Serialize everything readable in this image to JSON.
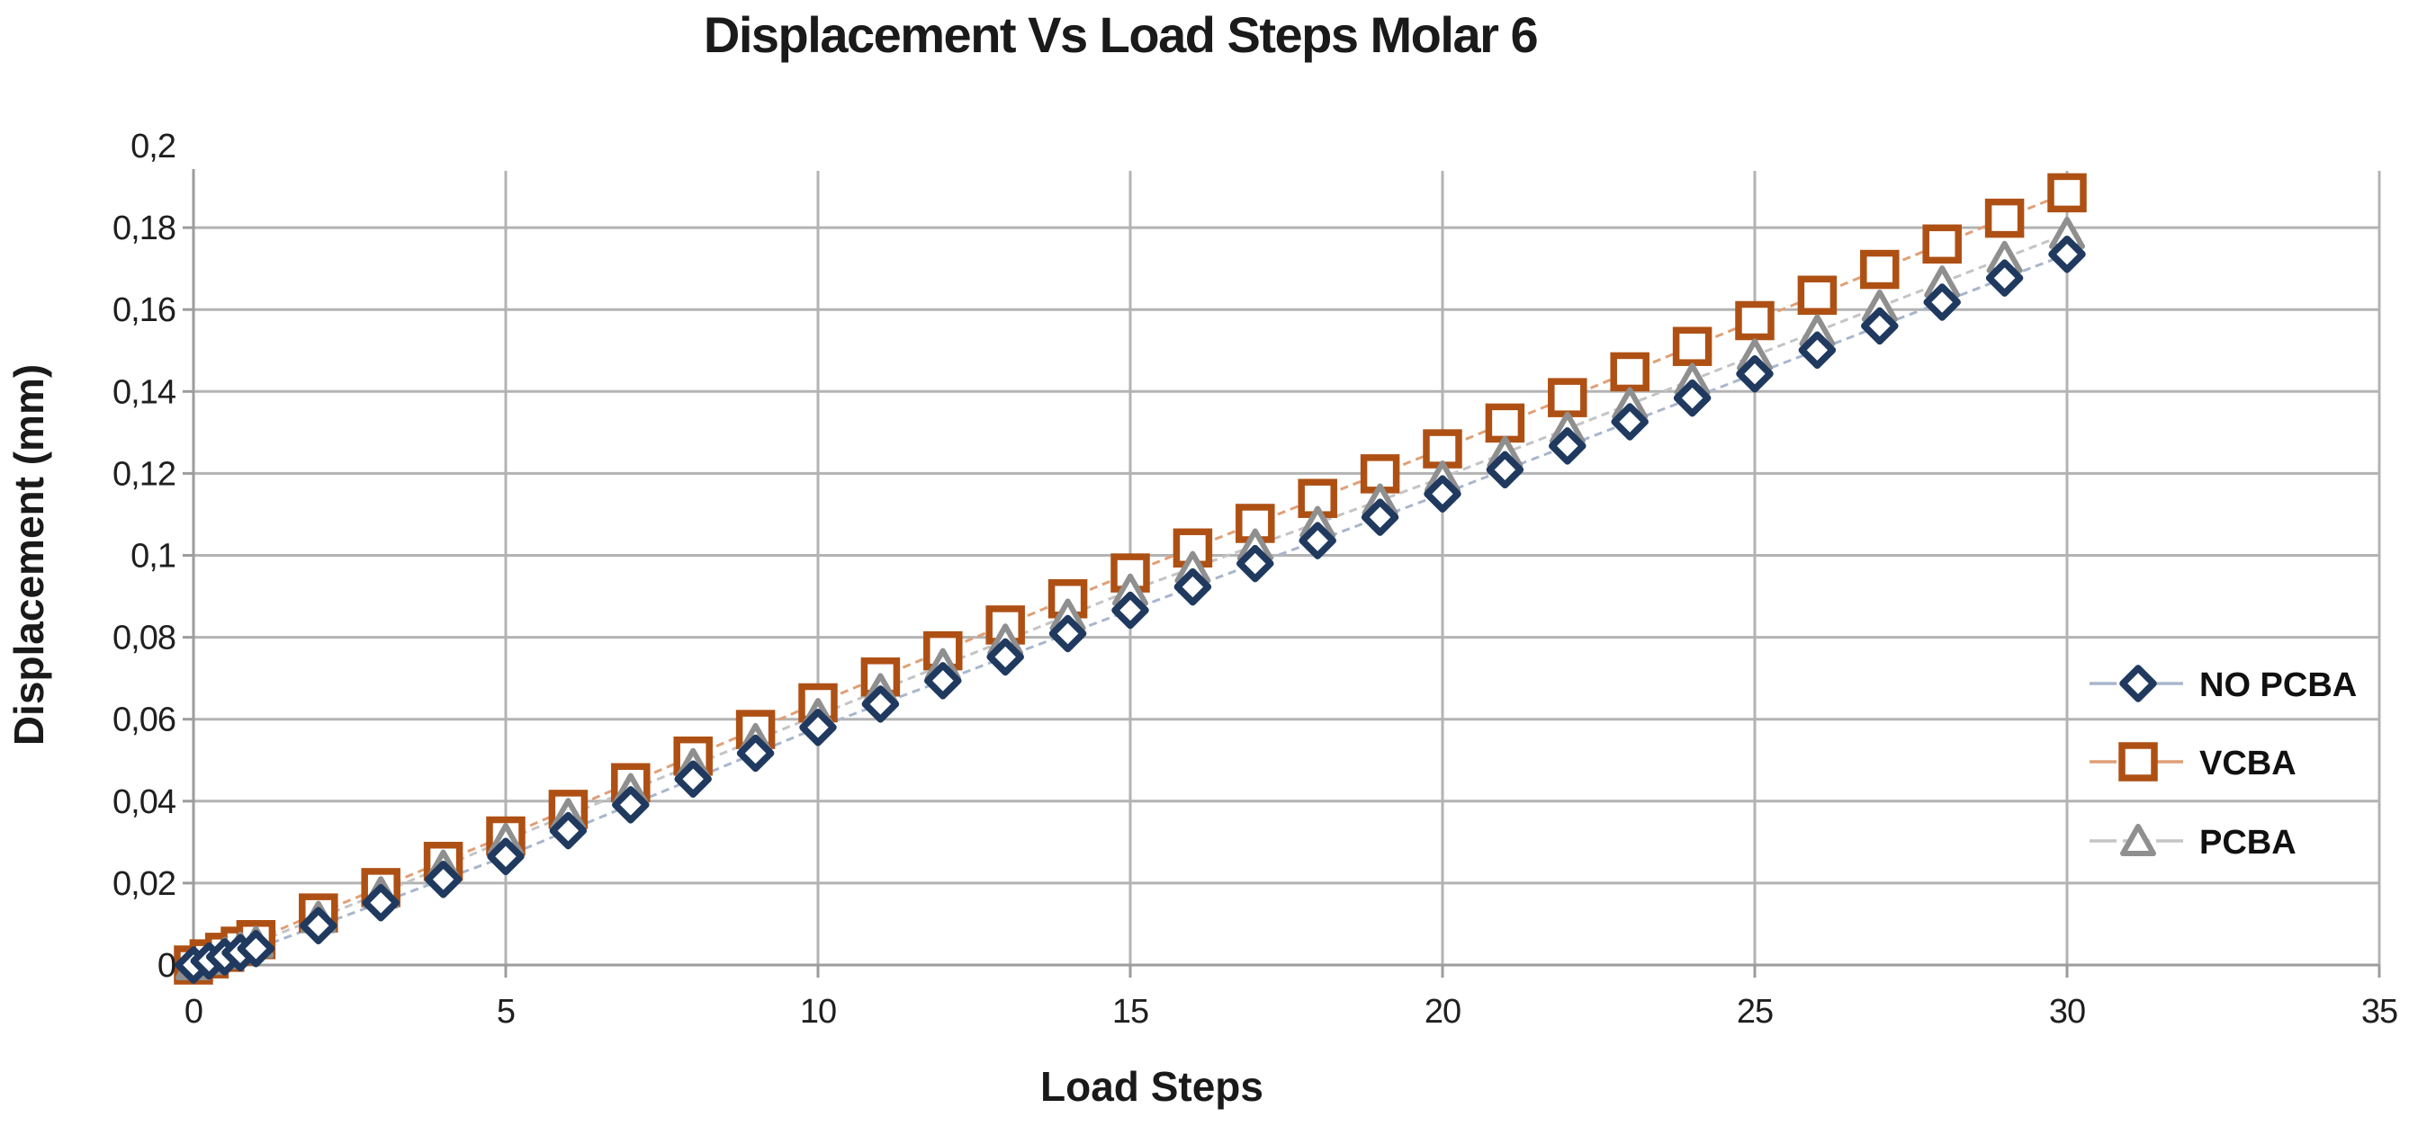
{
  "chart_data": {
    "type": "line",
    "title": "Displacement Vs Load Steps Molar 6",
    "xlabel": "Load Steps",
    "ylabel": "Displacement (mm)",
    "xlim": [
      0,
      35
    ],
    "ylim": [
      0,
      0.2
    ],
    "grid": true,
    "legend_position": "right-middle",
    "decimal_separator": ",",
    "colors": {
      "grid": "#b3b3b3",
      "axis": "#9c9c9c",
      "text": "#1a1a1a",
      "background": "#ffffff"
    },
    "x_ticks": [
      {
        "v": 0,
        "label": "0"
      },
      {
        "v": 5,
        "label": "5"
      },
      {
        "v": 10,
        "label": "10"
      },
      {
        "v": 15,
        "label": "15"
      },
      {
        "v": 20,
        "label": "20"
      },
      {
        "v": 25,
        "label": "25"
      },
      {
        "v": 30,
        "label": "30"
      },
      {
        "v": 35,
        "label": "35"
      }
    ],
    "y_ticks": [
      {
        "v": 0,
        "label": "0"
      },
      {
        "v": 0.02,
        "label": "0,02"
      },
      {
        "v": 0.04,
        "label": "0,04"
      },
      {
        "v": 0.06,
        "label": "0,06"
      },
      {
        "v": 0.08,
        "label": "0,08"
      },
      {
        "v": 0.1,
        "label": "0,1"
      },
      {
        "v": 0.12,
        "label": "0,12"
      },
      {
        "v": 0.14,
        "label": "0,14"
      },
      {
        "v": 0.16,
        "label": "0,16"
      },
      {
        "v": 0.18,
        "label": "0,18"
      },
      {
        "v": 0.2,
        "label": "0,2"
      }
    ],
    "x": [
      0,
      0.25,
      0.5,
      0.75,
      1,
      2,
      3,
      4,
      5,
      6,
      7,
      8,
      9,
      10,
      11,
      12,
      13,
      14,
      15,
      16,
      17,
      18,
      19,
      20,
      21,
      22,
      23,
      24,
      25,
      26,
      27,
      28,
      29,
      30
    ],
    "series": [
      {
        "name": "NO PCBA",
        "marker": "diamond",
        "color": "#20395f",
        "line_color": "#a8b6cc",
        "values": [
          0,
          0.001,
          0.002,
          0.003,
          0.004,
          0.0096,
          0.0152,
          0.0209,
          0.0265,
          0.0328,
          0.0391,
          0.0454,
          0.0517,
          0.058,
          0.0637,
          0.0694,
          0.0752,
          0.0809,
          0.0866,
          0.0923,
          0.098,
          0.1036,
          0.1093,
          0.115,
          0.1209,
          0.1267,
          0.1326,
          0.1384,
          0.1443,
          0.1501,
          0.156,
          0.1618,
          0.1677,
          0.1735
        ]
      },
      {
        "name": "VCBA",
        "marker": "square",
        "color": "#ae5014",
        "line_color": "#dfa077",
        "values": [
          0,
          0.0015,
          0.0031,
          0.0046,
          0.0062,
          0.0127,
          0.0189,
          0.0253,
          0.0315,
          0.038,
          0.0445,
          0.051,
          0.0575,
          0.064,
          0.0703,
          0.0767,
          0.083,
          0.0894,
          0.0957,
          0.1018,
          0.1078,
          0.1139,
          0.1199,
          0.126,
          0.1323,
          0.1385,
          0.1448,
          0.151,
          0.1573,
          0.1635,
          0.1698,
          0.176,
          0.1823,
          0.1885
        ]
      },
      {
        "name": "PCBA",
        "marker": "triangle",
        "color": "#8f8f8f",
        "line_color": "#c4c4c4",
        "values": [
          0,
          0.0013,
          0.0027,
          0.004,
          0.0054,
          0.0115,
          0.0175,
          0.024,
          0.0305,
          0.0366,
          0.0427,
          0.0488,
          0.0549,
          0.061,
          0.0671,
          0.0732,
          0.0792,
          0.0853,
          0.0914,
          0.0969,
          0.1024,
          0.1079,
          0.1134,
          0.119,
          0.125,
          0.1309,
          0.1369,
          0.1428,
          0.1488,
          0.1547,
          0.1607,
          0.1666,
          0.1726,
          0.1785
        ]
      }
    ]
  }
}
